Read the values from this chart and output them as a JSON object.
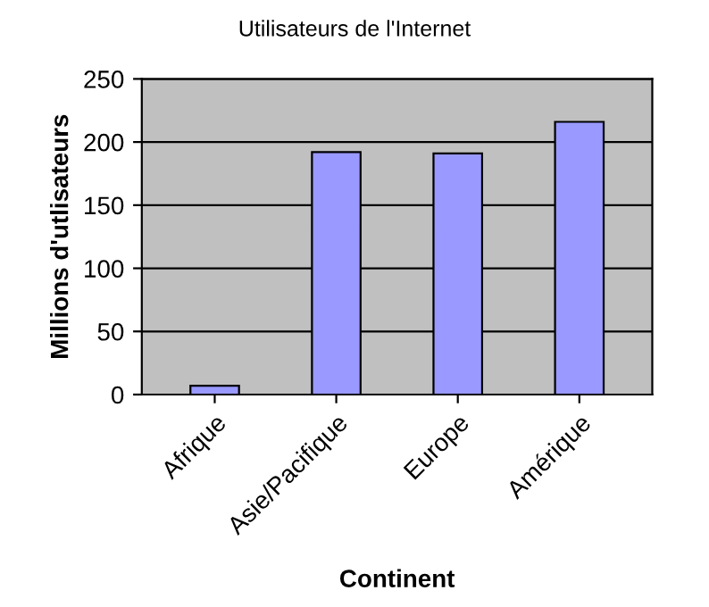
{
  "chart_data": {
    "type": "bar",
    "title": "Utilisateurs de l'Internet",
    "xlabel": "Continent",
    "ylabel": "Millions d'utlisateurs",
    "categories": [
      "Afrique",
      "Asie/Pacifique",
      "Europe",
      "Amérique"
    ],
    "values": [
      7,
      192,
      191,
      216
    ],
    "color": "#9999ff",
    "ylim": [
      0,
      250
    ],
    "yticks": [
      0,
      50,
      100,
      150,
      200,
      250
    ],
    "grid": "y"
  }
}
